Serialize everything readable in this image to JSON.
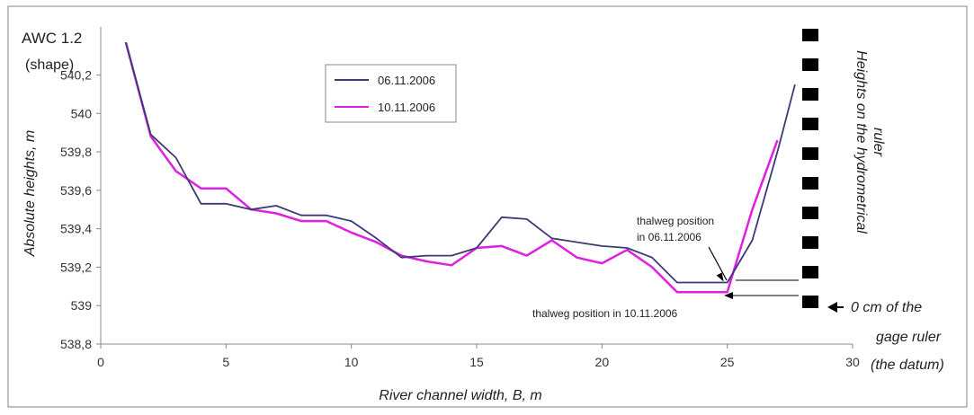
{
  "chart_data": {
    "type": "line",
    "xlabel": "River channel width, B, m",
    "ylabel": "Absolute heights, m",
    "corner_label_1": "AWC 1.2",
    "corner_label_2": "(shape)",
    "xlim": [
      0,
      30
    ],
    "ylim": [
      538.8,
      540.45
    ],
    "x_ticks": [
      0,
      5,
      10,
      15,
      20,
      25,
      30
    ],
    "y_ticks": [
      538.8,
      539,
      539.2,
      539.4,
      539.6,
      539.8,
      540,
      540.2
    ],
    "y_tick_labels": [
      "538,8",
      "539",
      "539,2",
      "539,4",
      "539,6",
      "539,8",
      "540",
      "540,2"
    ],
    "x_tick_labels": [
      "0",
      "5",
      "10",
      "15",
      "20",
      "25",
      "30"
    ],
    "grid": false,
    "legend_position": "top-center",
    "series": [
      {
        "name": "06.11.2006",
        "color": "#3a3a78",
        "x": [
          1,
          2,
          3,
          4,
          5,
          6,
          7,
          8,
          9,
          10,
          11,
          12,
          13,
          14,
          15,
          16,
          17,
          18,
          19,
          20,
          21,
          22,
          23,
          24,
          25,
          26,
          27,
          27.7
        ],
        "y": [
          540.37,
          539.89,
          539.77,
          539.53,
          539.53,
          539.5,
          539.52,
          539.47,
          539.47,
          539.44,
          539.35,
          539.25,
          539.26,
          539.26,
          539.3,
          539.46,
          539.45,
          539.35,
          539.33,
          539.31,
          539.3,
          539.25,
          539.12,
          539.12,
          539.12,
          539.34,
          539.8,
          540.15
        ]
      },
      {
        "name": "10.11.2006",
        "color": "#e020e0",
        "x": [
          1,
          2,
          3,
          4,
          5,
          6,
          7,
          8,
          9,
          10,
          11,
          12,
          13,
          14,
          15,
          16,
          17,
          18,
          19,
          20,
          21,
          22,
          23,
          24,
          25,
          26,
          27
        ],
        "y": [
          540.37,
          539.88,
          539.7,
          539.61,
          539.61,
          539.5,
          539.48,
          539.44,
          539.44,
          539.38,
          539.33,
          539.26,
          539.23,
          539.21,
          539.3,
          539.31,
          539.26,
          539.34,
          539.25,
          539.22,
          539.29,
          539.2,
          539.07,
          539.07,
          539.07,
          539.5,
          539.86
        ]
      }
    ],
    "annotations": {
      "thalweg_1_line1": "thalweg position",
      "thalweg_1_line2": "in 06.11.2006",
      "thalweg_2": "thalweg position in 10.11.2006",
      "ruler_title_1": "Heights on the hydrometrical",
      "ruler_title_2": "ruler",
      "datum_1": "0 cm of the",
      "datum_2": "gage ruler",
      "datum_3": "(the datum)"
    },
    "thalweg_1_point": {
      "x": 25,
      "y": 539.12
    },
    "thalweg_2_point": {
      "x": 25,
      "y": 539.07
    }
  }
}
